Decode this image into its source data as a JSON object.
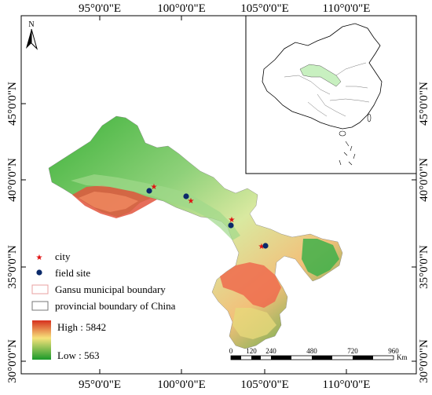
{
  "map": {
    "longitude_labels": [
      "95°0'0\"E",
      "100°0'0\"E",
      "105°0'0\"E",
      "110°0'0\"E"
    ],
    "latitude_labels": [
      "45°0'0\"N",
      "40°0'0\"N",
      "35°0'0\"N",
      "30°0'0\"N"
    ],
    "north_arrow_label": "N",
    "colors": {
      "high": "#d7301f",
      "mid": "#f6e27a",
      "low": "#1a9a2a",
      "city": "#e01010",
      "field_site": "#0b2a6a",
      "inset_gansu": "#c8f0c0"
    }
  },
  "legend": {
    "city_label": "city",
    "field_site_label": "field site",
    "municipal_label": "Gansu municipal boundary",
    "provincial_label": "provincial boundary of China",
    "high_label": "High : 5842",
    "low_label": "Low : 563"
  },
  "scale_bar": {
    "ticks": [
      "0",
      "120",
      "240",
      "480",
      "720",
      "960"
    ],
    "unit": "Km"
  }
}
